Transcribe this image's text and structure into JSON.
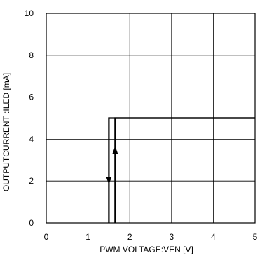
{
  "chart_data": {
    "type": "line",
    "title": "",
    "xlabel": "PWM VOLTAGE:VEN [V]",
    "ylabel": "OUTPUTCURRENT :ILED [mA]",
    "xlim": [
      0,
      5
    ],
    "ylim": [
      0,
      10
    ],
    "x_ticks": [
      0,
      1,
      2,
      3,
      4,
      5
    ],
    "y_ticks": [
      0,
      2,
      4,
      6,
      8,
      10
    ],
    "x_tick_labels": [
      "0",
      "1",
      "2",
      "3",
      "4",
      "5"
    ],
    "y_tick_labels": [
      "0",
      "2",
      "4",
      "6",
      "8",
      "10"
    ],
    "grid": true,
    "legend": "none",
    "series": [
      {
        "direction": "falling",
        "x": [
          5,
          1.5,
          1.5
        ],
        "y": [
          5,
          5,
          0
        ],
        "color": "#000000"
      },
      {
        "direction": "rising",
        "x": [
          1.65,
          1.65,
          5
        ],
        "y": [
          0,
          5,
          5
        ],
        "color": "#000000"
      }
    ],
    "arrows": [
      {
        "series": "falling",
        "x": 1.5,
        "y": 2.0,
        "direction": "down"
      },
      {
        "series": "rising",
        "x": 1.65,
        "y": 3.5,
        "direction": "up"
      }
    ]
  }
}
